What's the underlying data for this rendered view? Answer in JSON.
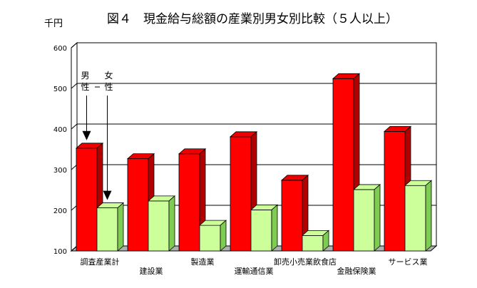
{
  "chart_data": {
    "type": "bar",
    "title": "図４　現金給与総額の産業別男女別比較（５人以上）",
    "ylabel": "千円",
    "ylim": [
      100,
      600
    ],
    "yticks": [
      100,
      200,
      300,
      400,
      500,
      600
    ],
    "grid": true,
    "style": "3d",
    "categories": [
      "調査産業計",
      "建設業",
      "製造業",
      "運輸通信業",
      "卸売小売業飲食店",
      "金融保険業",
      "サービス業"
    ],
    "series": [
      {
        "name": "男性",
        "color": "#ff0000",
        "values": [
          353,
          327,
          339,
          381,
          274,
          524,
          394
        ]
      },
      {
        "name": "女性",
        "color": "#ccff99",
        "values": [
          206,
          223,
          163,
          201,
          138,
          251,
          261
        ]
      }
    ],
    "annotations": [
      {
        "text": "男性",
        "series": "男性",
        "category": "調査産業計"
      },
      {
        "text": "女性",
        "series": "女性",
        "category": "調査産業計"
      }
    ]
  }
}
